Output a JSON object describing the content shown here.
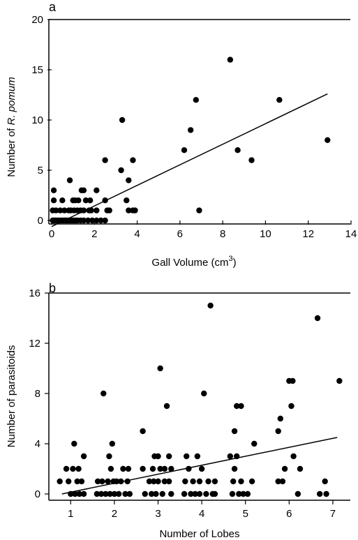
{
  "chart_data": [
    {
      "type": "scatter",
      "panel_label": "a",
      "xlabel": "Gall Volume (cm",
      "xlabel_sup": "3",
      "xlabel_end": ")",
      "ylabel_pre": "Number of ",
      "ylabel_italic": "R. pomum",
      "xlim": [
        0,
        14
      ],
      "ylim": [
        0,
        20
      ],
      "xticks": [
        0,
        2,
        4,
        6,
        8,
        10,
        12,
        14
      ],
      "yticks": [
        0,
        5,
        10,
        15,
        20
      ],
      "trendline": {
        "x": [
          0,
          12.9
        ],
        "y": [
          -0.6,
          12.6
        ]
      },
      "points": [
        [
          0.05,
          0
        ],
        [
          0.12,
          0
        ],
        [
          0.2,
          0
        ],
        [
          0.3,
          0
        ],
        [
          0.4,
          0
        ],
        [
          0.5,
          0
        ],
        [
          0.6,
          0
        ],
        [
          0.7,
          0
        ],
        [
          0.8,
          0
        ],
        [
          0.9,
          0
        ],
        [
          1.0,
          0
        ],
        [
          1.1,
          0
        ],
        [
          1.2,
          0
        ],
        [
          1.35,
          0
        ],
        [
          1.5,
          0
        ],
        [
          1.7,
          0
        ],
        [
          1.9,
          0
        ],
        [
          2.1,
          0
        ],
        [
          2.3,
          0
        ],
        [
          2.5,
          0
        ],
        [
          0.05,
          1
        ],
        [
          0.2,
          1
        ],
        [
          0.4,
          1
        ],
        [
          0.6,
          1
        ],
        [
          0.8,
          1
        ],
        [
          0.9,
          1
        ],
        [
          1.05,
          1
        ],
        [
          1.2,
          1
        ],
        [
          1.35,
          1
        ],
        [
          1.5,
          1
        ],
        [
          1.75,
          1
        ],
        [
          1.85,
          1
        ],
        [
          2.1,
          1
        ],
        [
          2.6,
          1
        ],
        [
          2.7,
          1
        ],
        [
          3.6,
          1
        ],
        [
          3.8,
          1
        ],
        [
          3.9,
          1
        ],
        [
          6.9,
          1
        ],
        [
          0.1,
          2
        ],
        [
          0.5,
          2
        ],
        [
          1.0,
          2
        ],
        [
          1.1,
          2
        ],
        [
          1.25,
          2
        ],
        [
          1.6,
          2
        ],
        [
          1.8,
          2
        ],
        [
          2.5,
          2
        ],
        [
          3.5,
          2
        ],
        [
          0.1,
          3
        ],
        [
          1.4,
          3
        ],
        [
          1.5,
          3
        ],
        [
          2.1,
          3
        ],
        [
          0.85,
          4
        ],
        [
          3.6,
          4
        ],
        [
          3.25,
          5
        ],
        [
          6.2,
          7
        ],
        [
          3.8,
          6
        ],
        [
          2.5,
          6
        ],
        [
          3.3,
          10
        ],
        [
          6.5,
          9
        ],
        [
          6.75,
          12
        ],
        [
          8.7,
          7
        ],
        [
          9.35,
          6
        ],
        [
          8.35,
          16
        ],
        [
          10.65,
          12
        ],
        [
          12.9,
          8
        ]
      ]
    },
    {
      "type": "scatter",
      "panel_label": "b",
      "xlabel": "Number of Lobes",
      "ylabel": "Number of parasitoids",
      "xlim": [
        0.5,
        7.4
      ],
      "ylim": [
        -0.5,
        16
      ],
      "xticks": [
        1,
        2,
        3,
        4,
        5,
        6,
        7
      ],
      "yticks": [
        0,
        4,
        8,
        12,
        16
      ],
      "trendline": {
        "x": [
          0.8,
          7.1
        ],
        "y": [
          0,
          4.5
        ]
      },
      "points": [
        [
          0.75,
          1
        ],
        [
          0.9,
          2
        ],
        [
          0.95,
          1
        ],
        [
          1.0,
          0
        ],
        [
          1.05,
          2
        ],
        [
          1.1,
          0
        ],
        [
          1.15,
          1
        ],
        [
          1.18,
          2
        ],
        [
          1.08,
          4
        ],
        [
          1.2,
          0
        ],
        [
          1.25,
          1
        ],
        [
          1.3,
          3
        ],
        [
          1.3,
          0
        ],
        [
          1.6,
          0
        ],
        [
          1.62,
          1
        ],
        [
          1.7,
          0
        ],
        [
          1.72,
          1
        ],
        [
          1.75,
          8
        ],
        [
          1.8,
          0
        ],
        [
          1.85,
          1
        ],
        [
          1.88,
          3
        ],
        [
          1.9,
          0
        ],
        [
          1.92,
          2
        ],
        [
          1.95,
          4
        ],
        [
          1.98,
          1
        ],
        [
          2.0,
          0
        ],
        [
          2.05,
          1
        ],
        [
          2.1,
          0
        ],
        [
          2.15,
          1
        ],
        [
          2.2,
          2
        ],
        [
          2.25,
          0
        ],
        [
          2.3,
          1
        ],
        [
          2.32,
          2
        ],
        [
          2.35,
          0
        ],
        [
          2.65,
          2
        ],
        [
          2.65,
          5
        ],
        [
          2.7,
          0
        ],
        [
          2.8,
          1
        ],
        [
          2.85,
          0
        ],
        [
          2.88,
          2
        ],
        [
          2.9,
          1
        ],
        [
          2.92,
          3
        ],
        [
          2.95,
          0
        ],
        [
          3.0,
          1
        ],
        [
          3.0,
          3
        ],
        [
          3.05,
          2
        ],
        [
          3.05,
          10
        ],
        [
          3.1,
          0
        ],
        [
          3.15,
          1
        ],
        [
          3.15,
          2
        ],
        [
          3.2,
          7
        ],
        [
          3.25,
          3
        ],
        [
          3.25,
          1
        ],
        [
          3.3,
          2
        ],
        [
          3.3,
          0
        ],
        [
          3.6,
          0
        ],
        [
          3.62,
          1
        ],
        [
          3.65,
          3
        ],
        [
          3.7,
          2
        ],
        [
          3.75,
          0
        ],
        [
          3.8,
          1
        ],
        [
          3.85,
          0
        ],
        [
          3.9,
          3
        ],
        [
          3.95,
          1
        ],
        [
          3.95,
          0
        ],
        [
          4.0,
          2
        ],
        [
          4.05,
          8
        ],
        [
          4.1,
          0
        ],
        [
          4.15,
          1
        ],
        [
          4.2,
          15
        ],
        [
          4.25,
          0
        ],
        [
          4.3,
          1
        ],
        [
          4.3,
          0
        ],
        [
          4.65,
          3
        ],
        [
          4.7,
          0
        ],
        [
          4.72,
          1
        ],
        [
          4.75,
          2
        ],
        [
          4.75,
          5
        ],
        [
          4.8,
          3
        ],
        [
          4.8,
          7
        ],
        [
          4.85,
          0
        ],
        [
          4.9,
          1
        ],
        [
          4.9,
          7
        ],
        [
          4.95,
          0
        ],
        [
          5.05,
          0
        ],
        [
          5.15,
          1
        ],
        [
          5.2,
          4
        ],
        [
          5.75,
          5
        ],
        [
          5.75,
          1
        ],
        [
          5.8,
          6
        ],
        [
          5.85,
          1
        ],
        [
          5.9,
          2
        ],
        [
          6.0,
          9
        ],
        [
          6.05,
          7
        ],
        [
          6.08,
          9
        ],
        [
          6.1,
          3
        ],
        [
          6.2,
          0
        ],
        [
          6.25,
          2
        ],
        [
          6.65,
          14
        ],
        [
          6.7,
          0
        ],
        [
          6.85,
          0
        ],
        [
          6.82,
          1
        ],
        [
          7.15,
          9
        ]
      ]
    }
  ]
}
